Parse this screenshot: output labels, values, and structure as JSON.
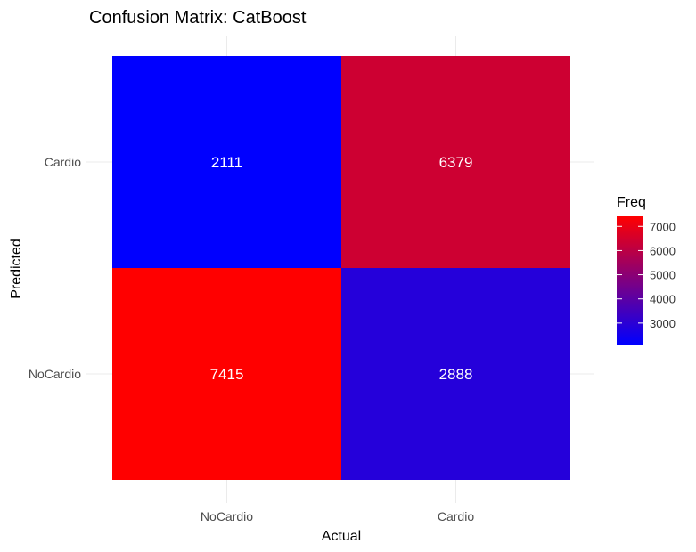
{
  "chart_data": {
    "type": "heatmap",
    "title": "Confusion Matrix: CatBoost",
    "xlabel": "Actual",
    "ylabel": "Predicted",
    "x_categories": [
      "NoCardio",
      "Cardio"
    ],
    "y_categories": [
      "NoCardio",
      "Cardio"
    ],
    "cells": [
      {
        "x": "NoCardio",
        "y": "Cardio",
        "value": 2111,
        "label": "2111"
      },
      {
        "x": "Cardio",
        "y": "Cardio",
        "value": 6379,
        "label": "6379"
      },
      {
        "x": "NoCardio",
        "y": "NoCardio",
        "value": 7415,
        "label": "7415"
      },
      {
        "x": "Cardio",
        "y": "NoCardio",
        "value": 2888,
        "label": "2888"
      }
    ],
    "color_scale": {
      "low": "#0000ff",
      "high": "#ff0000",
      "min": 2111,
      "max": 7415
    },
    "legend": {
      "title": "Freq",
      "placement": "right",
      "ticks": [
        3000,
        4000,
        5000,
        6000,
        7000
      ],
      "tick_labels": [
        "3000",
        "4000",
        "5000",
        "6000",
        "7000"
      ]
    },
    "grid": true
  }
}
